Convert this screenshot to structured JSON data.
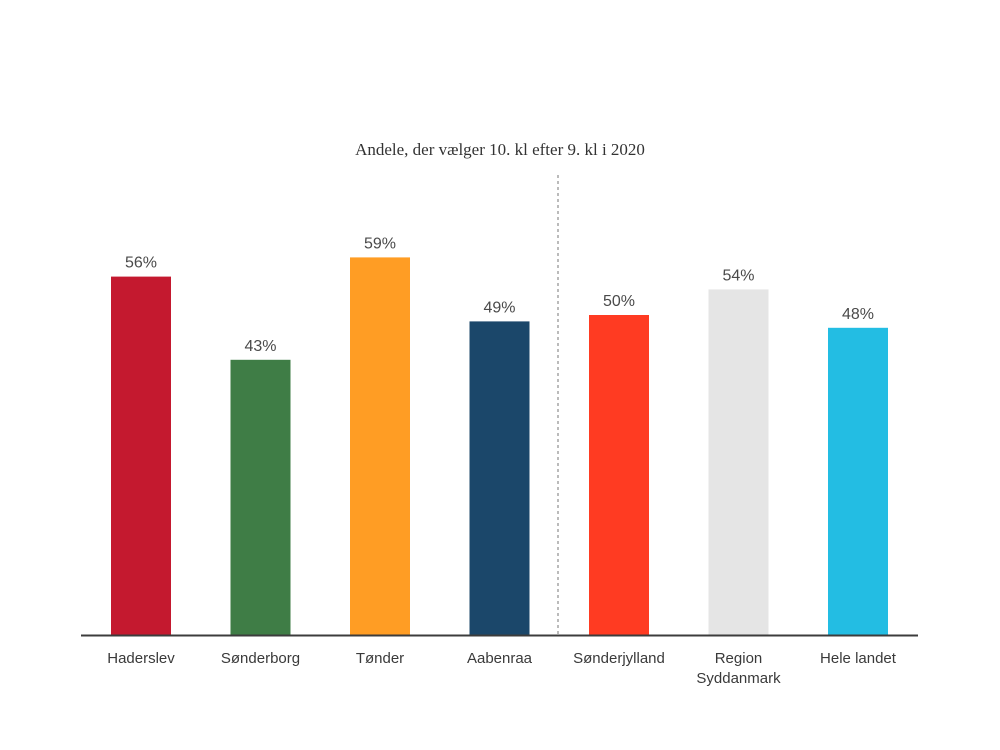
{
  "chart_data": {
    "type": "bar",
    "title": "Andele, der vælger 10. kl efter 9. kl i 2020",
    "xlabel": "",
    "ylabel": "",
    "ylim": [
      0,
      62.5
    ],
    "grid": false,
    "legend": "none",
    "divider_after_index": 3,
    "categories": [
      [
        "Haderslev"
      ],
      [
        "Sønderborg"
      ],
      [
        "Tønder"
      ],
      [
        "Aabenraa"
      ],
      [
        "Sønderjylland"
      ],
      [
        "Region",
        "Syddanmark"
      ],
      [
        "Hele landet"
      ]
    ],
    "values": [
      56,
      43,
      59,
      49,
      50,
      54,
      48
    ],
    "value_labels": [
      "56%",
      "43%",
      "59%",
      "49%",
      "50%",
      "54%",
      "48%"
    ],
    "colors": [
      "#c4192f",
      "#3f7d46",
      "#ff9d24",
      "#1b476a",
      "#ff3b22",
      "#e5e5e5",
      "#23bde3"
    ]
  }
}
